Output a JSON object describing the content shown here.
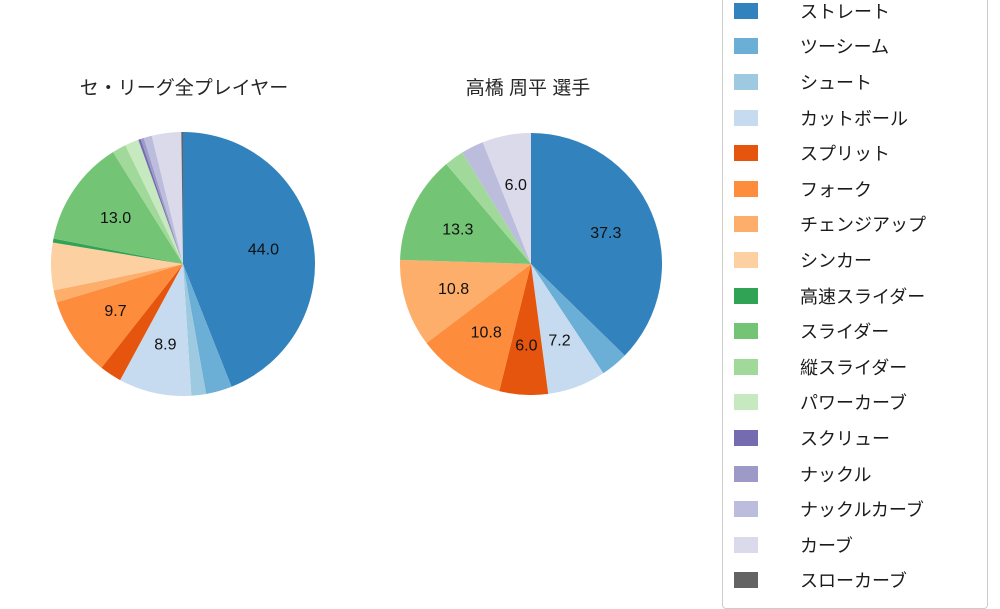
{
  "figure": {
    "background_color": "#ffffff",
    "text_color": "#1a1a1a"
  },
  "chart_data": [
    {
      "type": "pie",
      "title": "セ・リーグ全プレイヤー",
      "start_angle": "12-oclock",
      "direction": "clockwise",
      "label_distance": 0.62,
      "slices": [
        {
          "name": "ストレート",
          "value": 44.0,
          "label": "44.0"
        },
        {
          "name": "ツーシーム",
          "value": 3.2
        },
        {
          "name": "シュート",
          "value": 1.8
        },
        {
          "name": "カットボール",
          "value": 8.9,
          "label": "8.9"
        },
        {
          "name": "スプリット",
          "value": 2.7
        },
        {
          "name": "フォーク",
          "value": 9.7,
          "label": "9.7"
        },
        {
          "name": "チェンジアップ",
          "value": 1.5
        },
        {
          "name": "シンカー",
          "value": 5.8
        },
        {
          "name": "高速スライダー",
          "value": 0.5
        },
        {
          "name": "スライダー",
          "value": 13.0,
          "label": "13.0"
        },
        {
          "name": "縦スライダー",
          "value": 1.7
        },
        {
          "name": "パワーカーブ",
          "value": 1.7
        },
        {
          "name": "スクリュー",
          "value": 0.3
        },
        {
          "name": "ナックル",
          "value": 0.4
        },
        {
          "name": "ナックルカーブ",
          "value": 1.0
        },
        {
          "name": "カーブ",
          "value": 3.6
        },
        {
          "name": "スローカーブ",
          "value": 0.2
        }
      ]
    },
    {
      "type": "pie",
      "title": "高橋 周平 選手",
      "start_angle": "12-oclock",
      "direction": "clockwise",
      "label_distance": 0.62,
      "slices": [
        {
          "name": "ストレート",
          "value": 37.3,
          "label": "37.3"
        },
        {
          "name": "ツーシーム",
          "value": 3.4
        },
        {
          "name": "シュート",
          "value": 0
        },
        {
          "name": "カットボール",
          "value": 7.2,
          "label": "7.2"
        },
        {
          "name": "スプリット",
          "value": 6.0,
          "label": "6.0"
        },
        {
          "name": "フォーク",
          "value": 10.8,
          "label": "10.8"
        },
        {
          "name": "チェンジアップ",
          "value": 10.8,
          "label": "10.8"
        },
        {
          "name": "シンカー",
          "value": 0
        },
        {
          "name": "高速スライダー",
          "value": 0
        },
        {
          "name": "スライダー",
          "value": 13.3,
          "label": "13.3"
        },
        {
          "name": "縦スライダー",
          "value": 2.4
        },
        {
          "name": "パワーカーブ",
          "value": 0
        },
        {
          "name": "スクリュー",
          "value": 0
        },
        {
          "name": "ナックル",
          "value": 0
        },
        {
          "name": "ナックルカーブ",
          "value": 2.8
        },
        {
          "name": "カーブ",
          "value": 6.0,
          "label": "6.0"
        },
        {
          "name": "スローカーブ",
          "value": 0
        }
      ]
    }
  ],
  "legend": {
    "position": "right",
    "border_color": "#cccccc",
    "items": [
      {
        "label": "ストレート",
        "color": "#3182bd"
      },
      {
        "label": "ツーシーム",
        "color": "#6baed6"
      },
      {
        "label": "シュート",
        "color": "#9ecae1"
      },
      {
        "label": "カットボール",
        "color": "#c6dbef"
      },
      {
        "label": "スプリット",
        "color": "#e6550d"
      },
      {
        "label": "フォーク",
        "color": "#fd8d3c"
      },
      {
        "label": "チェンジアップ",
        "color": "#fdae6b"
      },
      {
        "label": "シンカー",
        "color": "#fdd0a2"
      },
      {
        "label": "高速スライダー",
        "color": "#31a354"
      },
      {
        "label": "スライダー",
        "color": "#74c476"
      },
      {
        "label": "縦スライダー",
        "color": "#a1d99b"
      },
      {
        "label": "パワーカーブ",
        "color": "#c7e9c0"
      },
      {
        "label": "スクリュー",
        "color": "#756bb1"
      },
      {
        "label": "ナックル",
        "color": "#9e9ac8"
      },
      {
        "label": "ナックルカーブ",
        "color": "#bcbddc"
      },
      {
        "label": "カーブ",
        "color": "#dadaeb"
      },
      {
        "label": "スローカーブ",
        "color": "#636363"
      }
    ]
  }
}
